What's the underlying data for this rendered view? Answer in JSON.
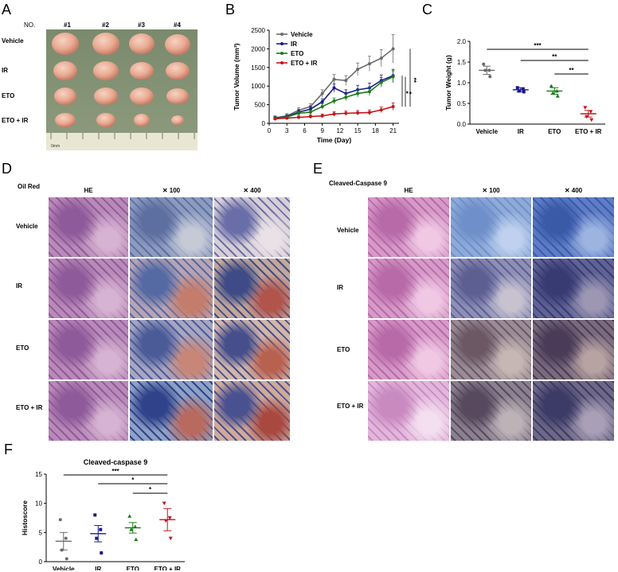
{
  "panels": {
    "A": {
      "letter": "A",
      "no_label": "NO.",
      "mouse_ids": [
        "#1",
        "#2",
        "#3",
        "#4"
      ],
      "groups": [
        "Vehicle",
        "IR",
        "ETO",
        "ETO + IR"
      ],
      "ruler_label": "0mm"
    },
    "B": {
      "letter": "B",
      "sig_marks": [
        "*",
        "*",
        "**"
      ]
    },
    "C": {
      "letter": "C",
      "sig_marks": [
        "***",
        "**",
        "**"
      ]
    },
    "D": {
      "letter": "D",
      "stain": "Oil Red",
      "columns": [
        "HE",
        "✕ 100",
        "✕ 400"
      ],
      "rows": [
        "Vehicle",
        "IR",
        "ETO",
        "ETO + IR"
      ]
    },
    "E": {
      "letter": "E",
      "stain": "Cleaved-Caspase 9",
      "columns": [
        "HE",
        "✕ 100",
        "✕ 400"
      ],
      "rows": [
        "Vehicle",
        "IR",
        "ETO",
        "ETO + IR"
      ]
    },
    "F": {
      "letter": "F",
      "sig_marks": [
        "***",
        "*",
        "*"
      ]
    }
  },
  "colors": {
    "vehicle": "#6b6b6b",
    "ir": "#1a1a8c",
    "eto": "#1a7a1a",
    "eto_ir": "#c0161b"
  },
  "chart_data": [
    {
      "id": "B",
      "type": "line",
      "title": "",
      "xlabel": "Time (Day)",
      "ylabel": "Tumor Volume (mm³)",
      "x": [
        1,
        3,
        5,
        7,
        9,
        11,
        13,
        15,
        17,
        19,
        21
      ],
      "xticks": [
        0,
        3,
        6,
        9,
        12,
        15,
        18,
        21
      ],
      "yticks": [
        0,
        500,
        1000,
        1500,
        2000,
        2500
      ],
      "xlim": [
        0,
        22
      ],
      "ylim": [
        0,
        2500
      ],
      "series": [
        {
          "name": "Vehicle",
          "values": [
            150,
            200,
            350,
            450,
            800,
            1180,
            1150,
            1450,
            1600,
            1750,
            2000
          ],
          "errors": [
            50,
            60,
            70,
            80,
            100,
            130,
            130,
            170,
            200,
            230,
            380
          ]
        },
        {
          "name": "IR",
          "values": [
            140,
            180,
            300,
            380,
            580,
            950,
            800,
            900,
            950,
            1150,
            1280
          ],
          "errors": [
            40,
            50,
            60,
            70,
            80,
            110,
            100,
            120,
            130,
            150,
            170
          ]
        },
        {
          "name": "ETO",
          "values": [
            130,
            170,
            270,
            300,
            450,
            600,
            700,
            800,
            850,
            1100,
            1250
          ],
          "errors": [
            40,
            50,
            55,
            60,
            70,
            80,
            90,
            100,
            110,
            130,
            160
          ]
        },
        {
          "name": "ETO + IR",
          "values": [
            120,
            140,
            160,
            180,
            200,
            250,
            270,
            280,
            290,
            360,
            450
          ],
          "errors": [
            30,
            35,
            40,
            45,
            50,
            60,
            60,
            65,
            70,
            80,
            100
          ]
        }
      ]
    },
    {
      "id": "C",
      "type": "scatter",
      "title": "",
      "xlabel": "",
      "ylabel": "Tumor Weight (g)",
      "categories": [
        "Vehicle",
        "IR",
        "ETO",
        "ETO + IR"
      ],
      "yticks": [
        0.0,
        0.5,
        1.0,
        1.5,
        2.0
      ],
      "ylim": [
        0,
        2.0
      ],
      "series": [
        {
          "name": "Vehicle",
          "points": [
            1.45,
            1.3,
            1.3,
            1.15
          ],
          "mean": 1.3,
          "sem": 0.1
        },
        {
          "name": "IR",
          "points": [
            0.88,
            0.85,
            0.8,
            0.78
          ],
          "mean": 0.83,
          "sem": 0.05
        },
        {
          "name": "ETO",
          "points": [
            0.92,
            0.8,
            0.75,
            0.68
          ],
          "mean": 0.8,
          "sem": 0.08
        },
        {
          "name": "ETO + IR",
          "points": [
            0.4,
            0.3,
            0.18,
            0.1
          ],
          "mean": 0.25,
          "sem": 0.08
        }
      ]
    },
    {
      "id": "F",
      "type": "scatter",
      "title": "Cleaved-caspase 9",
      "xlabel": "",
      "ylabel": "Histoscore",
      "categories": [
        "Vehicle",
        "IR",
        "ETO",
        "ETO + IR"
      ],
      "yticks": [
        0,
        5,
        10,
        15
      ],
      "ylim": [
        0,
        15
      ],
      "series": [
        {
          "name": "Vehicle",
          "points": [
            7.2,
            4.0,
            2.0,
            0.5
          ],
          "mean": 3.5,
          "sem": 1.5
        },
        {
          "name": "IR",
          "points": [
            8.0,
            5.5,
            4.0,
            1.5
          ],
          "mean": 4.8,
          "sem": 1.4
        },
        {
          "name": "ETO",
          "points": [
            7.8,
            6.0,
            5.5,
            3.8
          ],
          "mean": 5.8,
          "sem": 0.9
        },
        {
          "name": "ETO + IR",
          "points": [
            10.0,
            7.5,
            7.0,
            4.0
          ],
          "mean": 7.2,
          "sem": 1.9
        }
      ]
    }
  ]
}
